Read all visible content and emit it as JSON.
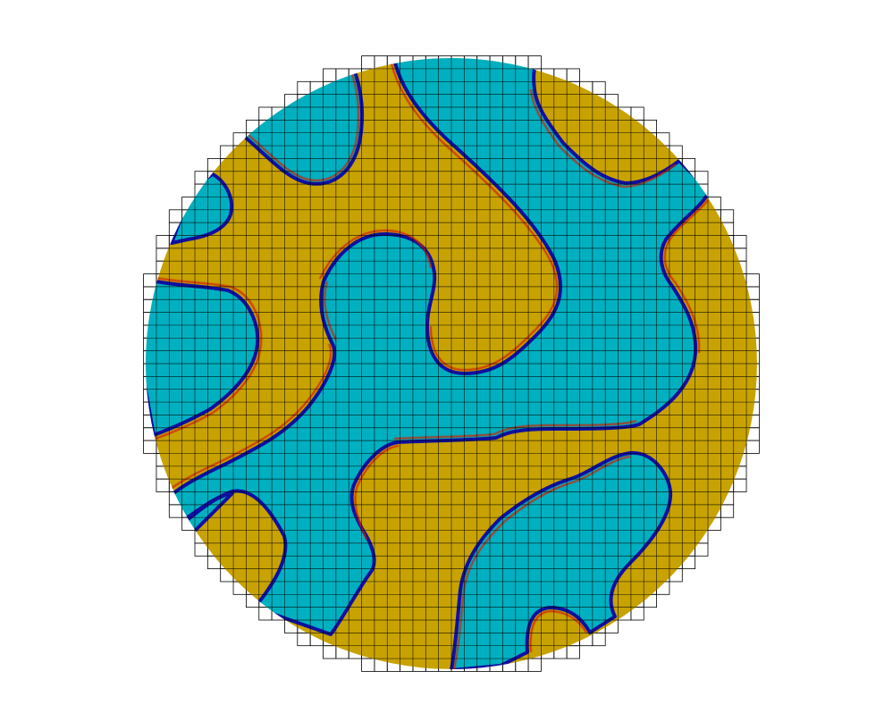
{
  "scene": {
    "description_free": true,
    "colors": {
      "background": "#ffffff",
      "phase_a": "#c8a200",
      "phase_b": "#00b0c0",
      "interface_outer": "#d02000",
      "interface_inner": "#1010a0",
      "grid_line": "#000000"
    },
    "grid": {
      "visible": true,
      "extends_beyond_disc": true
    }
  }
}
